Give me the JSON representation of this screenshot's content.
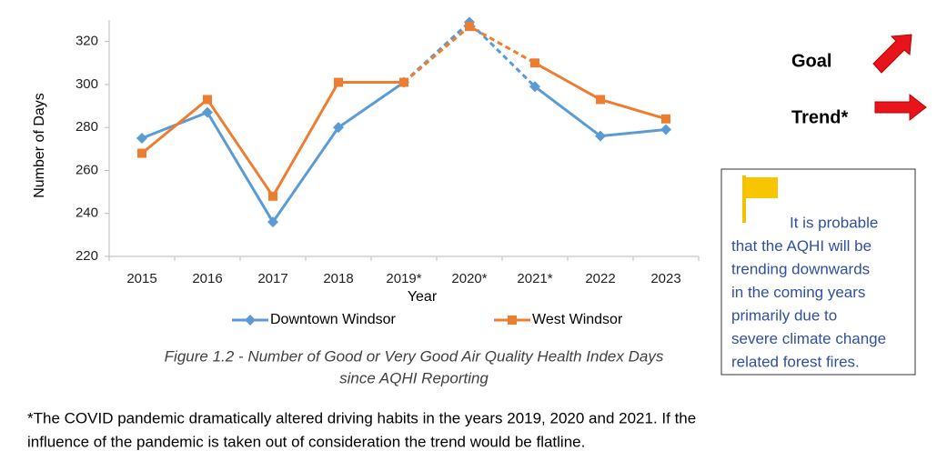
{
  "chart_data": {
    "type": "line",
    "x_label": "Year",
    "y_label": "Number of Days",
    "categories": [
      "2015",
      "2016",
      "2017",
      "2018",
      "2019*",
      "2020*",
      "2021*",
      "2022",
      "2023"
    ],
    "series": [
      {
        "name": "Downtown Windsor",
        "color": "#5b9bd5",
        "marker": "diamond",
        "values": [
          275,
          287,
          236,
          280,
          301,
          329,
          299,
          276,
          279
        ]
      },
      {
        "name": "West Windsor",
        "color": "#ed7d31",
        "marker": "square",
        "values": [
          268,
          293,
          248,
          301,
          301,
          327,
          310,
          293,
          284
        ]
      }
    ],
    "dashed": [
      4,
      6
    ],
    "ylim": [
      220,
      330
    ],
    "yticks": [
      220,
      240,
      260,
      280,
      300,
      320
    ],
    "grid": false,
    "caption": [
      "Figure 1.2 -  Number of Good or Very Good Air Quality Health Index Days",
      "since AQHI Reporting"
    ]
  },
  "goal": "Goal",
  "trend": "Trend*",
  "note": [
    "It is probable",
    "that the AQHI will be",
    "trending downwards",
    "in the coming years",
    "primarily due to",
    "severe climate change",
    "related forest fires."
  ],
  "footnote": [
    "*The COVID pandemic dramatically altered driving habits in the years 2019, 2020 and 2021. If the",
    "influence of the pandemic is taken out of consideration the trend would be flatline."
  ]
}
